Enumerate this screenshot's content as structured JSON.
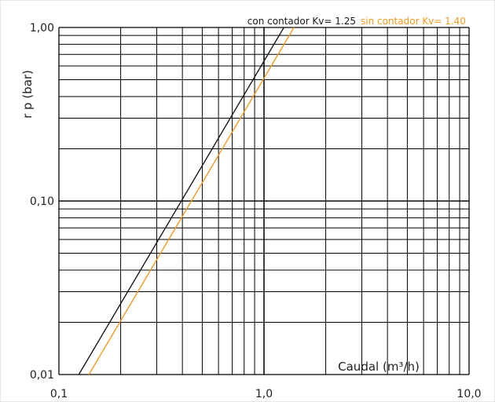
{
  "chart_data": {
    "type": "line",
    "scale": {
      "x": "log",
      "y": "log"
    },
    "xlim": [
      0.1,
      10
    ],
    "ylim": [
      0.01,
      1
    ],
    "grid": true,
    "xlabel": "Caudal (m³/h)",
    "ylabel": "r p (bar)",
    "x_tick_labels": [
      "0,1",
      "1,0",
      "10,0"
    ],
    "y_tick_labels": [
      "0,01",
      "0,10",
      "1,00"
    ],
    "legend_position": "top-right",
    "series": [
      {
        "name": "con contador Kv= 1.25",
        "color": "#1a1a1a",
        "points": [
          [
            0.125,
            0.01
          ],
          [
            1.25,
            1.0
          ]
        ]
      },
      {
        "name": "sin contador Kv= 1.40",
        "color": "#f39a1e",
        "points": [
          [
            0.14,
            0.01
          ],
          [
            1.4,
            1.0
          ]
        ]
      }
    ]
  }
}
